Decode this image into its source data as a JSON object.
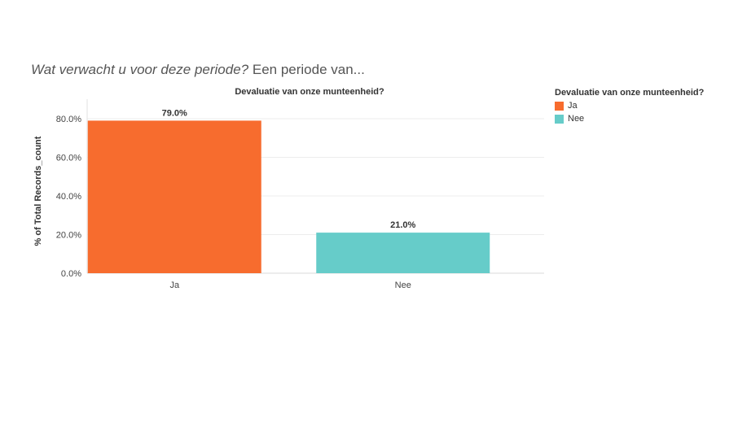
{
  "page": {
    "question": "Wat verwacht u voor deze periode?",
    "question_suffix": "Een periode van..."
  },
  "chart_data": {
    "type": "bar",
    "title": "Devaluatie van onze munteenheid?",
    "ylabel": "% of Total Records_count",
    "xlabel": "",
    "categories": [
      "Ja",
      "Nee"
    ],
    "values": [
      79.0,
      21.0
    ],
    "value_labels": [
      "79.0%",
      "21.0%"
    ],
    "colors": [
      "#f76c2e",
      "#66ccc9"
    ],
    "ylim": [
      0,
      80
    ],
    "yticks": [
      0,
      20,
      40,
      60,
      80
    ],
    "ytick_labels": [
      "0.0%",
      "20.0%",
      "40.0%",
      "60.0%",
      "80.0%"
    ],
    "grid": true,
    "legend": {
      "title": "Devaluatie van onze munteenheid?",
      "placement": "right",
      "entries": [
        "Ja",
        "Nee"
      ]
    }
  }
}
